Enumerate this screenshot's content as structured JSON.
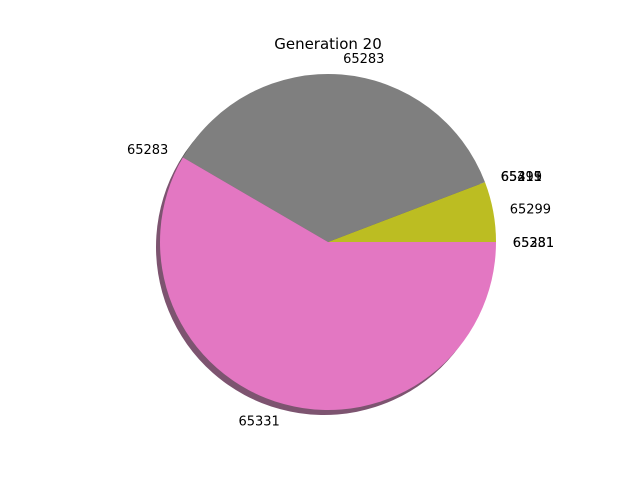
{
  "chart_data": {
    "type": "pie",
    "title": "Generation 20",
    "shadow": true,
    "start_angle_deg": 0,
    "direction": "counterclockwise",
    "slices": [
      {
        "label": "65281",
        "value": 0.0,
        "color": "#17becf"
      },
      {
        "label": "65299",
        "value": 5.8,
        "color": "#bcbd22"
      },
      {
        "label": "65315",
        "value": 0.0,
        "color": "#1f77b4"
      },
      {
        "label": "65411",
        "value": 0.0,
        "color": "#ff7f0e"
      },
      {
        "label": "65299",
        "value": 0.0,
        "color": "#2ca02c"
      },
      {
        "label": "65283",
        "value": 35.8,
        "color": "#7f7f7f"
      },
      {
        "label": "65283",
        "value": 0.0,
        "color": "#8c564b"
      },
      {
        "label": "65331",
        "value": 58.4,
        "color": "#e377c2"
      },
      {
        "label": "65331",
        "value": 0.0,
        "color": "#9467bd"
      }
    ]
  }
}
